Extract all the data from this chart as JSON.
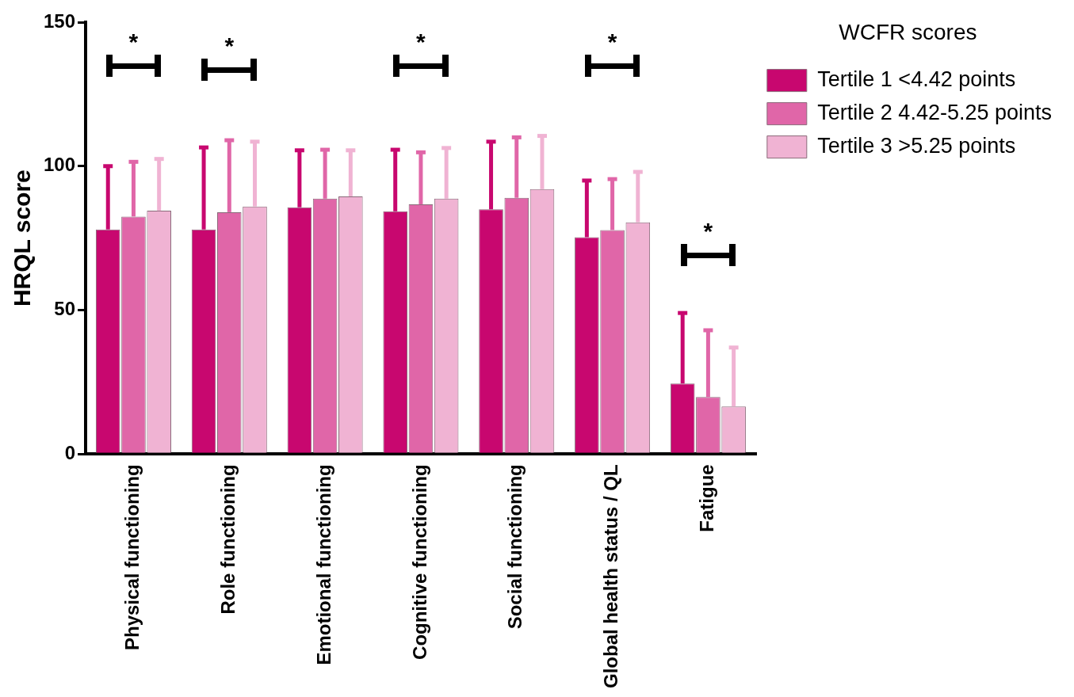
{
  "chart_data": {
    "type": "bar",
    "ylabel": "HRQL score",
    "legend_title": "WCFR scores",
    "legend": "top right",
    "categories": [
      "Physical functioning",
      "Role functioning",
      "Emotional functioning",
      "Cognitive functioning",
      "Social functioning",
      "Global health status / QL",
      "Fatigue"
    ],
    "series": [
      {
        "name": "Tertile 1 <4.42 points",
        "color": "#c8076f",
        "values": [
          78,
          78,
          85.7,
          84.3,
          85,
          75.3,
          24.5
        ],
        "errors": [
          [
            78,
            100
          ],
          [
            78,
            106.5
          ],
          [
            85.7,
            105.5
          ],
          [
            84.3,
            105.7
          ],
          [
            85,
            108.5
          ],
          [
            75.3,
            95
          ],
          [
            24.5,
            49
          ]
        ]
      },
      {
        "name": "Tertile 2 4.42-5.25 points",
        "color": "#e066a8",
        "values": [
          82.5,
          84,
          88.7,
          86.7,
          89,
          77.8,
          19.8
        ],
        "errors": [
          [
            82.5,
            101.5
          ],
          [
            84,
            109
          ],
          [
            88.7,
            105.7
          ],
          [
            86.7,
            104.8
          ],
          [
            89,
            110
          ],
          [
            77.8,
            95.5
          ],
          [
            19.8,
            43
          ]
        ]
      },
      {
        "name": "Tertile 3 >5.25 points",
        "color": "#f0b3d3",
        "values": [
          84.5,
          86,
          89.5,
          88.7,
          92,
          80.5,
          16.5
        ],
        "errors": [
          [
            84.5,
            102.5
          ],
          [
            86,
            108.5
          ],
          [
            89.5,
            105.5
          ],
          [
            88.7,
            106.3
          ],
          [
            92,
            110.5
          ],
          [
            80.5,
            98
          ],
          [
            16.5,
            37
          ]
        ]
      }
    ],
    "ylim": [
      0,
      150
    ],
    "yticks": [
      0,
      50,
      100,
      150
    ],
    "grid": false,
    "annotations": [
      "*",
      "*",
      "*",
      "*",
      "*"
    ]
  }
}
